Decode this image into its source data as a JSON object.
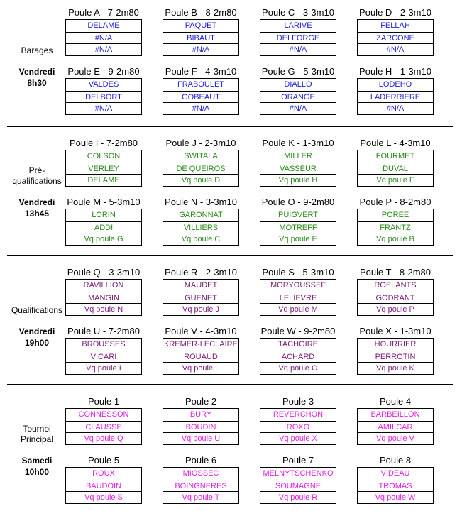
{
  "sections": [
    {
      "label": [
        "Barages"
      ],
      "day": "Vendredi",
      "time": "8h30",
      "color": "#1c1cd9",
      "pools": [
        {
          "title": "Poule A - 7-2m80",
          "entries": [
            "DELAME",
            "#N/A",
            "#N/A"
          ]
        },
        {
          "title": "Poule B - 8-2m80",
          "entries": [
            "PAQUET",
            "BIBAUT",
            "#N/A"
          ]
        },
        {
          "title": "Poule C - 3-3m10",
          "entries": [
            "LARIVE",
            "DELFORGE",
            "#N/A"
          ]
        },
        {
          "title": "Poule D - 2-3m10",
          "entries": [
            "FELLAH",
            "ZARCONE",
            "#N/A"
          ]
        },
        {
          "title": "Poule E - 9-2m80",
          "entries": [
            "VALDES",
            "DELBORT",
            "#N/A"
          ]
        },
        {
          "title": "Poule F - 4-3m10",
          "entries": [
            "FRABOULET",
            "GOBEAUT",
            "#N/A"
          ]
        },
        {
          "title": "Poule G - 5-3m10",
          "entries": [
            "DIALLO",
            "ORANGE",
            "#N/A"
          ]
        },
        {
          "title": "Poule H - 1-3m10",
          "entries": [
            "LODEHO",
            "LADERRIERE",
            "#N/A"
          ]
        }
      ]
    },
    {
      "label": [
        "Pré-",
        "qualifications"
      ],
      "day": "Vendredi",
      "time": "13h45",
      "color": "#2a8a1a",
      "pools": [
        {
          "title": "Poule I - 7-2m80",
          "entries": [
            "COLSON",
            "VERLEY",
            "DELAME"
          ]
        },
        {
          "title": "Poule J - 2-3m10",
          "entries": [
            "SWITALA",
            "DE QUEIROS",
            "Vq poule D"
          ]
        },
        {
          "title": "Poule K - 1-3m10",
          "entries": [
            "MILLER",
            "VASSEUR",
            "Vq poule H"
          ]
        },
        {
          "title": "Poule L - 4-3m10",
          "entries": [
            "FOURMET",
            "DUVAL",
            "Vq poule F"
          ]
        },
        {
          "title": "Poule M - 5-3m10",
          "entries": [
            "LORIN",
            "ADDI",
            "Vq poule G"
          ]
        },
        {
          "title": "Poule N - 3-3m10",
          "entries": [
            "GARONNAT",
            "VILLIERS",
            "Vq poule C"
          ]
        },
        {
          "title": "Poule O - 9-2m80",
          "entries": [
            "PUIGVERT",
            "MOTREFF",
            "Vq poule E"
          ]
        },
        {
          "title": "Poule P - 8-2m80",
          "entries": [
            "POREE",
            "FRANTZ",
            "Vq poule B"
          ]
        }
      ]
    },
    {
      "label": [
        "Qualifications"
      ],
      "day": "Vendredi",
      "time": "19h00",
      "color": "#7a1a7a",
      "pools": [
        {
          "title": "Poule Q - 3-3m10",
          "entries": [
            "RAVILLION",
            "MANGIN",
            "Vq poule N"
          ]
        },
        {
          "title": "Poule R - 2-3m10",
          "entries": [
            "MAUDET",
            "GUENET",
            "Vq poule J"
          ]
        },
        {
          "title": "Poule S - 5-3m10",
          "entries": [
            "MORYOUSSEF",
            "LELIEVRE",
            "Vq poule M"
          ]
        },
        {
          "title": "Poule T - 8-2m80",
          "entries": [
            "ROELANTS",
            "GODRANT",
            "Vq poule P"
          ]
        },
        {
          "title": "Poule U - 7-2m80",
          "entries": [
            "BROUSSES",
            "VICARI",
            "Vq poule I"
          ]
        },
        {
          "title": "Poule V - 4-3m10",
          "entries": [
            "KREMER-LECLAIRE",
            "ROUAUD",
            "Vq poule L"
          ]
        },
        {
          "title": "Poule W - 9-2m80",
          "entries": [
            "TACHOIRE",
            "ACHARD",
            "Vq poule O"
          ]
        },
        {
          "title": "Poule X - 1-3m10",
          "entries": [
            "HOURRIER",
            "PERROTIN",
            "Vq poule K"
          ]
        }
      ]
    },
    {
      "label": [
        "Tournoi",
        "Principal"
      ],
      "day": "Samedi",
      "time": "10h00",
      "color": "#e020e0",
      "pools": [
        {
          "title": "Poule 1",
          "entries": [
            "CONNESSON",
            "CLAUSSE",
            "Vq poule Q"
          ]
        },
        {
          "title": "Poule 2",
          "entries": [
            "BURY",
            "BOUDIN",
            "Vq poule U"
          ]
        },
        {
          "title": "Poule 3",
          "entries": [
            "REVERCHON",
            "ROXO",
            "Vq poule X"
          ]
        },
        {
          "title": "Poule 4",
          "entries": [
            "BARBEILLON",
            "AMILCAR",
            "Vq poule V"
          ]
        },
        {
          "title": "Poule 5",
          "entries": [
            "ROUX",
            "BAUDOIN",
            "Vq poule S"
          ]
        },
        {
          "title": "Poule 6",
          "entries": [
            "MIOSSEC",
            "BOINGNERES",
            "Vq poule T"
          ]
        },
        {
          "title": "Poule 7",
          "entries": [
            "MELNYTSCHENKO",
            "SOUMAGNE",
            "Vq poule R"
          ]
        },
        {
          "title": "Poule 8",
          "entries": [
            "VIDEAU",
            "TROMAS",
            "Vq poule W"
          ]
        }
      ]
    }
  ]
}
